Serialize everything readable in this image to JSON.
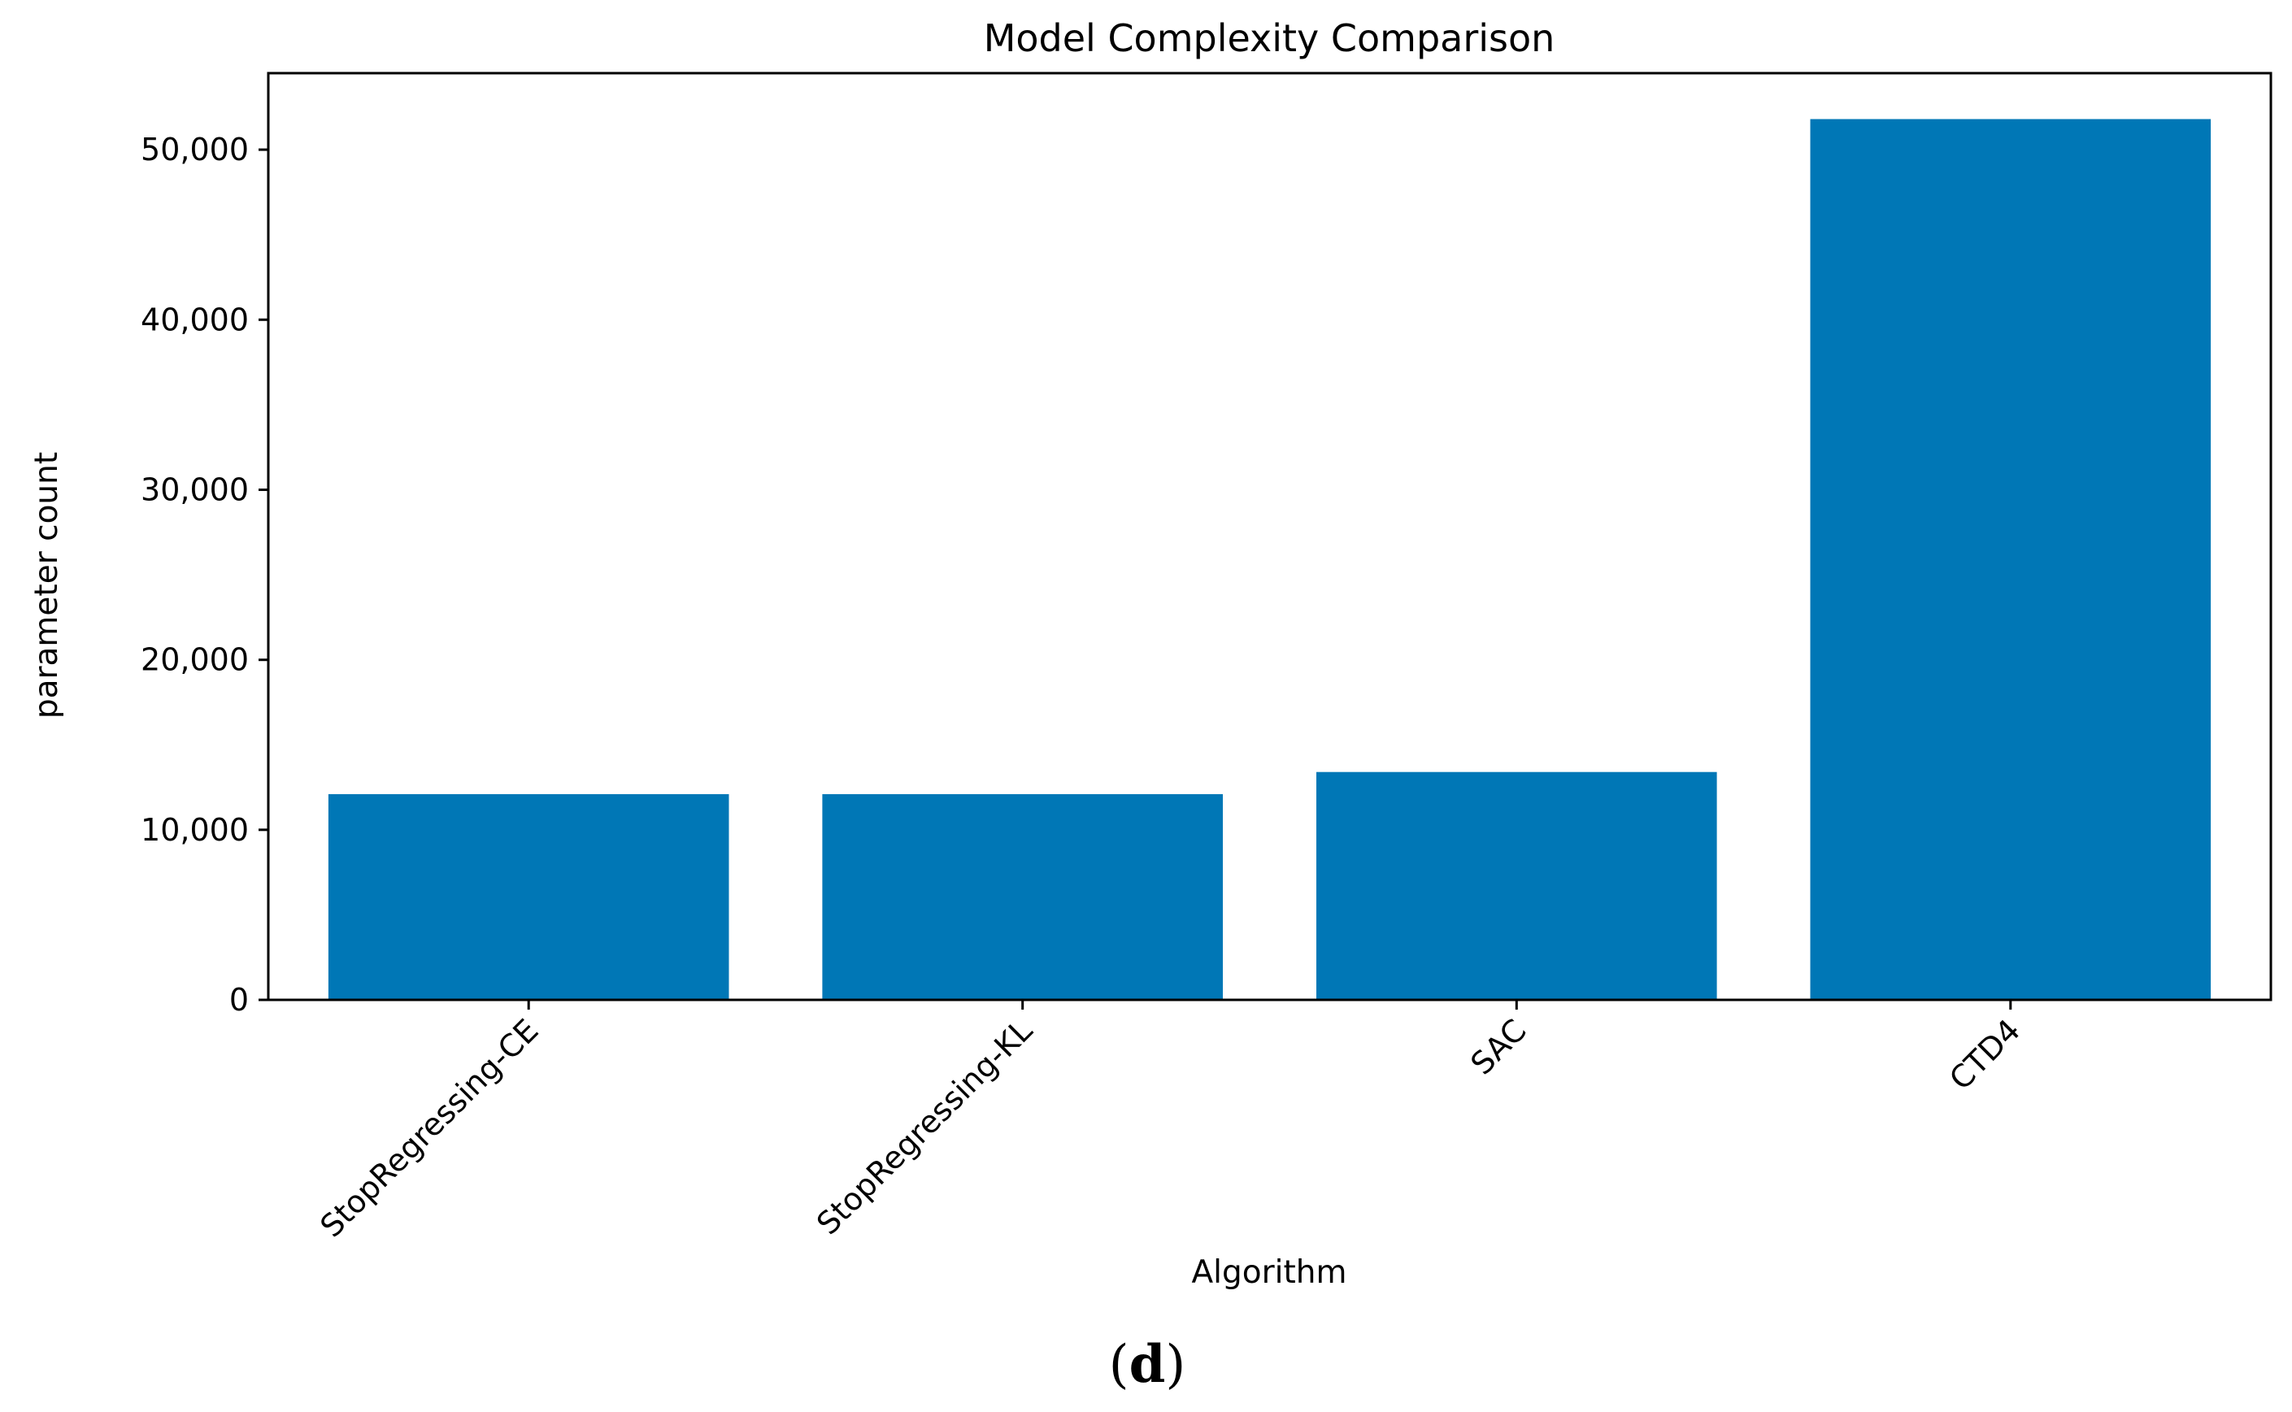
{
  "chart_data": {
    "type": "bar",
    "title": "Model Complexity Comparison",
    "xlabel": "Algorithm",
    "ylabel": "parameter count",
    "categories": [
      "StopRegressing-CE",
      "StopRegressing-KL",
      "SAC",
      "CTD4"
    ],
    "values": [
      12100,
      12100,
      13400,
      51800
    ],
    "ylim": [
      0,
      54500
    ],
    "yticks": [
      0,
      10000,
      20000,
      30000,
      40000,
      50000
    ],
    "ytick_labels": [
      "0",
      "10,000",
      "20,000",
      "30,000",
      "40,000",
      "50,000"
    ],
    "bar_color": "#0077b6",
    "grid": false,
    "legend": "none"
  },
  "panel_label": {
    "open": "(",
    "letter": "d",
    "close": ")"
  }
}
